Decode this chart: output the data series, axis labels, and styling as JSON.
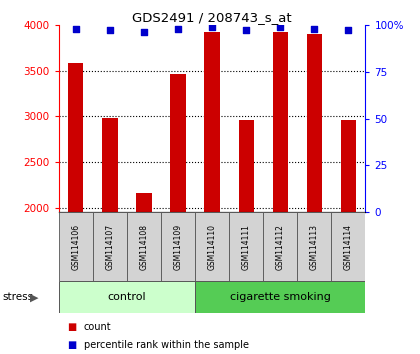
{
  "title": "GDS2491 / 208743_s_at",
  "samples": [
    "GSM114106",
    "GSM114107",
    "GSM114108",
    "GSM114109",
    "GSM114110",
    "GSM114111",
    "GSM114112",
    "GSM114113",
    "GSM114114"
  ],
  "counts": [
    3580,
    2980,
    2160,
    3460,
    3920,
    2960,
    3920,
    3900,
    2960
  ],
  "percentiles": [
    98,
    97,
    96,
    98,
    99,
    97,
    99,
    98,
    97
  ],
  "ylim_left": [
    1950,
    4000
  ],
  "ylim_right": [
    0,
    100
  ],
  "yticks_left": [
    2000,
    2500,
    3000,
    3500,
    4000
  ],
  "yticks_right": [
    0,
    25,
    50,
    75,
    100
  ],
  "ytick_labels_right": [
    "0",
    "25",
    "50",
    "75",
    "100%"
  ],
  "bar_color": "#cc0000",
  "dot_color": "#0000cc",
  "bar_bottom": 1950,
  "control_count": 4,
  "control_label": "control",
  "smoking_label": "cigarette smoking",
  "control_color": "#ccffcc",
  "smoking_color": "#55cc55",
  "group_label": "stress",
  "legend_count_label": "count",
  "legend_pct_label": "percentile rank within the sample",
  "bar_width": 0.45,
  "dot_size": 18
}
